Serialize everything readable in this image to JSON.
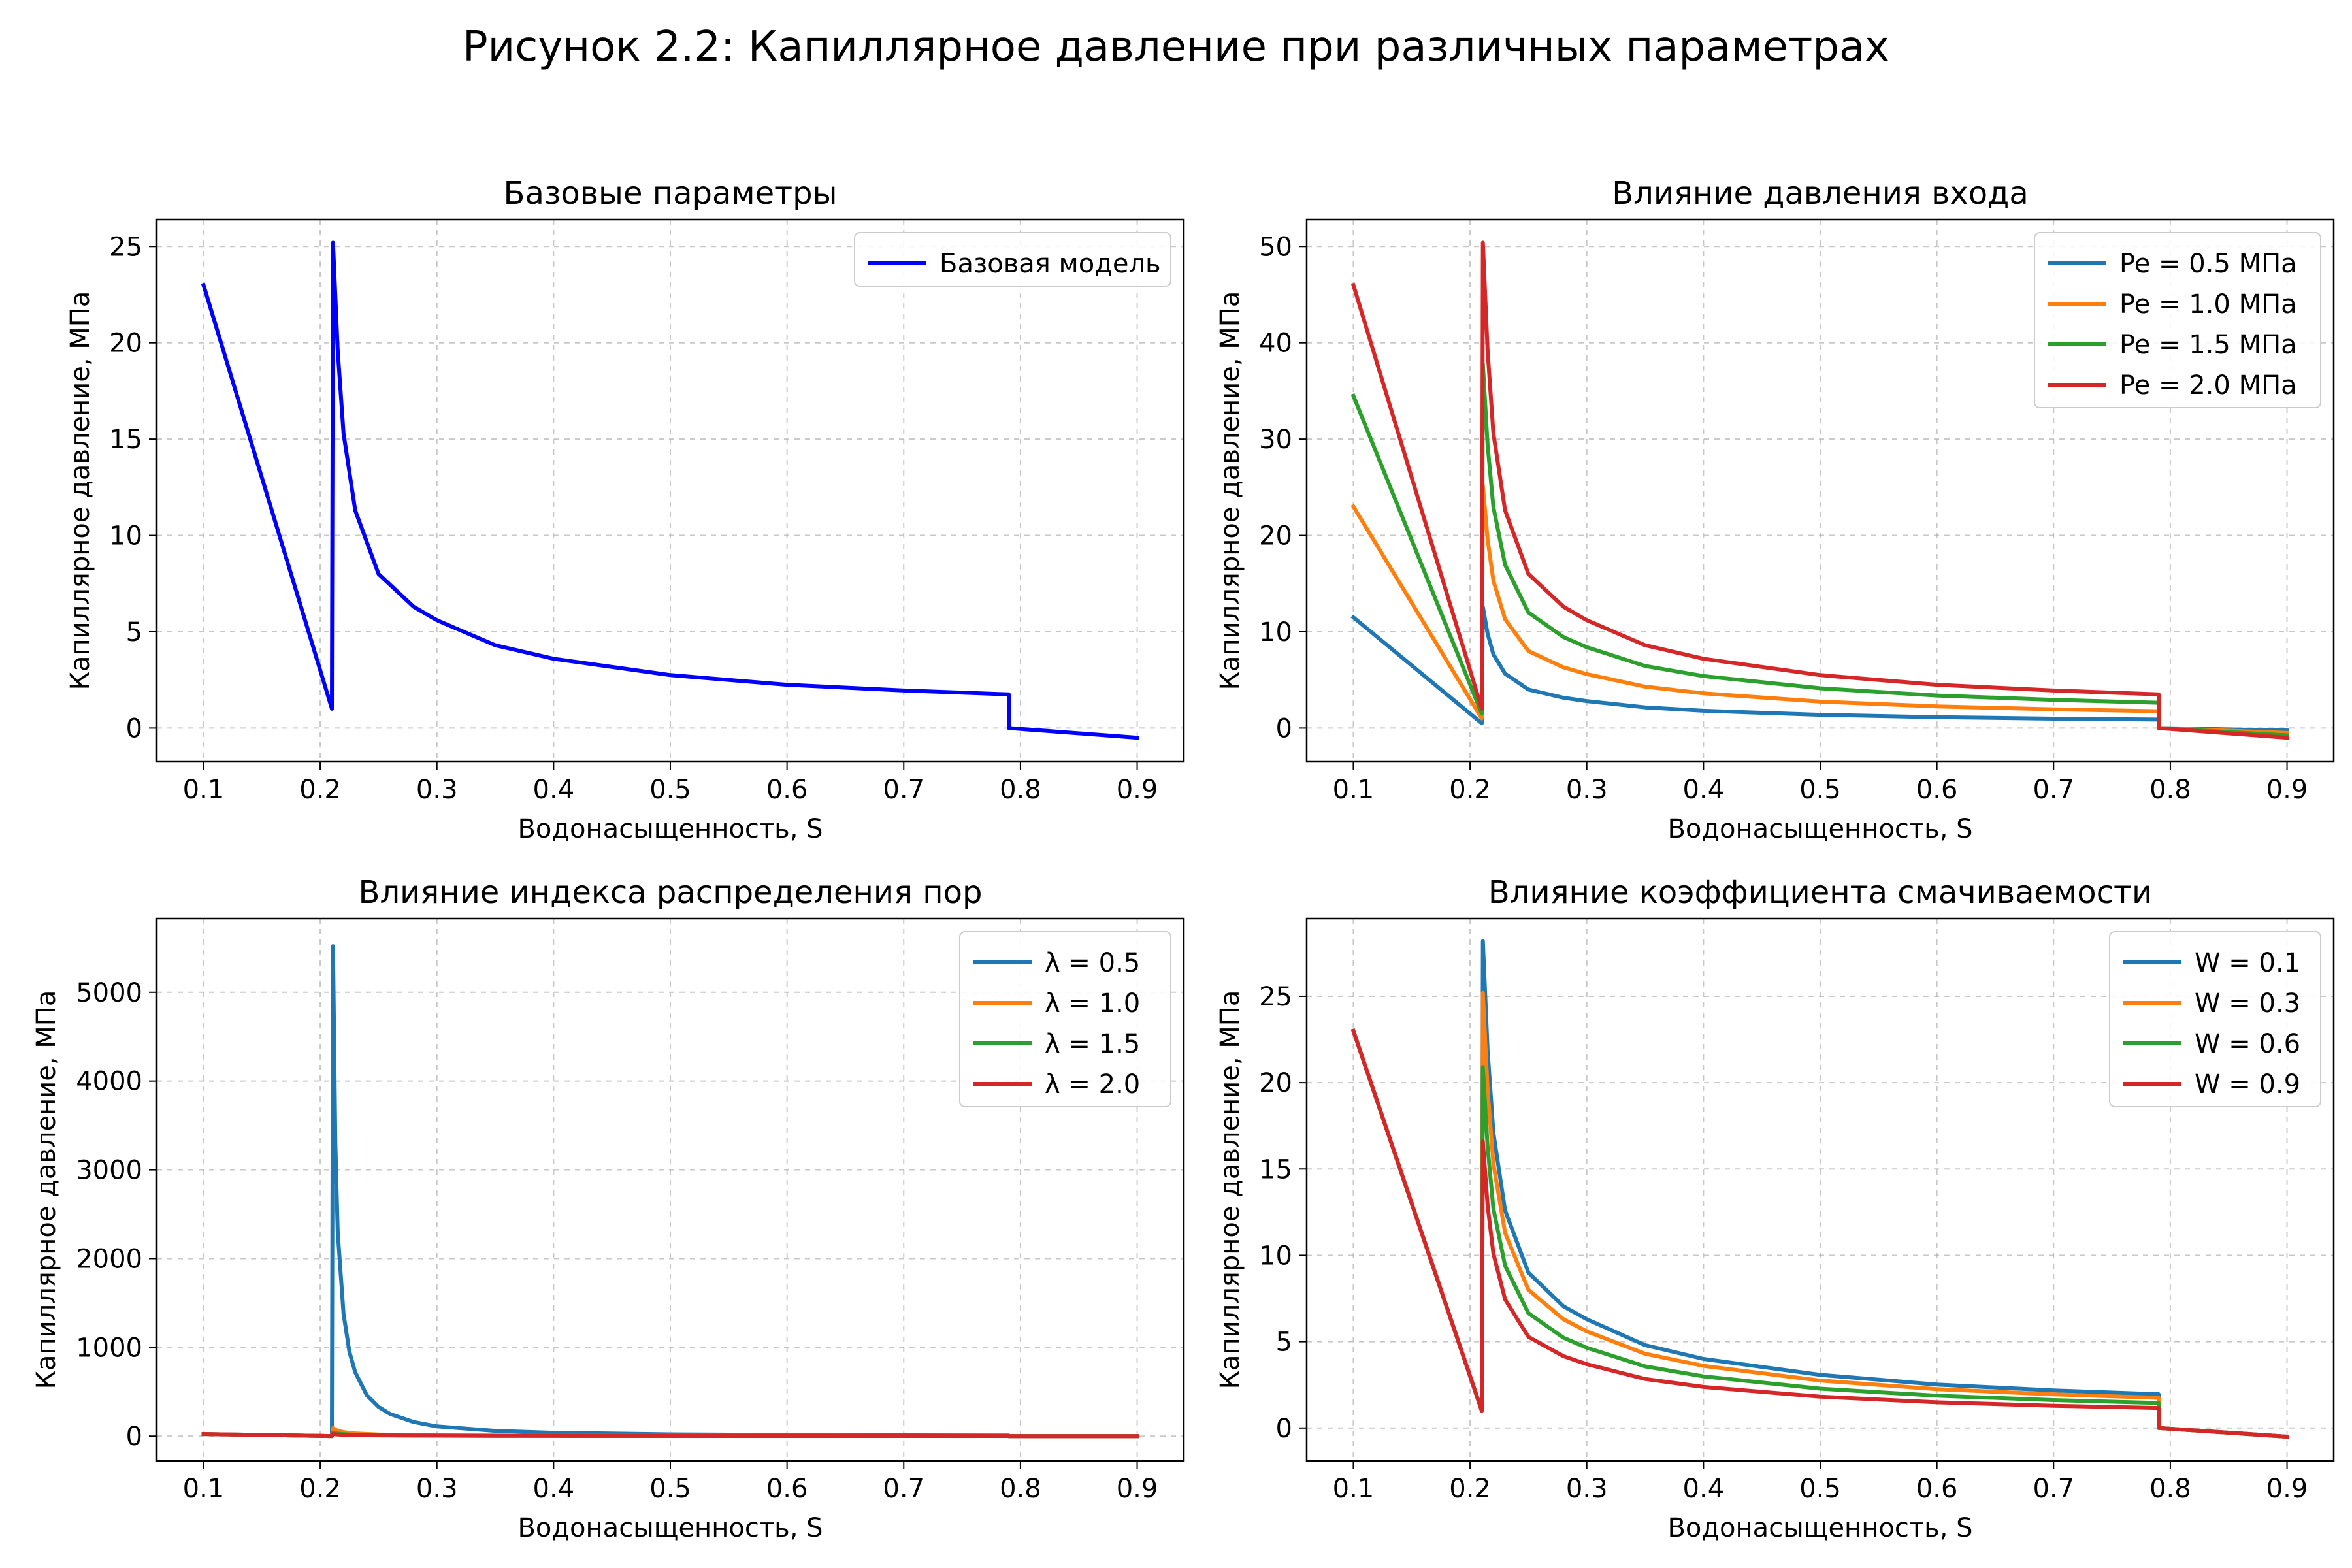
{
  "figure_title": "Рисунок 2.2: Капиллярное давление при различных параметрах",
  "colors": {
    "tab_blue": "#1f77b4",
    "tab_orange": "#ff7f0e",
    "tab_green": "#2ca02c",
    "tab_red": "#d62728",
    "pure_blue": "#0000ff",
    "grid": "#b0b0b0"
  },
  "chart_data": [
    {
      "type": "line",
      "title": "Базовые параметры",
      "xlabel": "Водонасыщенность, S",
      "ylabel": "Капиллярное давление, МПа",
      "xlim": [
        0.06,
        0.94
      ],
      "ylim": [
        -1.75,
        26.4
      ],
      "xticks": [
        0.1,
        0.2,
        0.3,
        0.4,
        0.5,
        0.6,
        0.7,
        0.8,
        0.9
      ],
      "xtick_labels": [
        "0.1",
        "0.2",
        "0.3",
        "0.4",
        "0.5",
        "0.6",
        "0.7",
        "0.8",
        "0.9"
      ],
      "yticks": [
        0,
        5,
        10,
        15,
        20,
        25
      ],
      "ytick_labels": [
        "0",
        "5",
        "10",
        "15",
        "20",
        "25"
      ],
      "grid": true,
      "legend_position": "top-right",
      "series": [
        {
          "name": "Базовая модель",
          "color": "#0000ff",
          "x": [
            0.1,
            0.21,
            0.211,
            0.215,
            0.22,
            0.23,
            0.25,
            0.28,
            0.3,
            0.35,
            0.4,
            0.5,
            0.6,
            0.7,
            0.79,
            0.7901,
            0.9
          ],
          "y": [
            23.0,
            1.0,
            25.2,
            19.6,
            15.3,
            11.3,
            8.0,
            6.3,
            5.6,
            4.3,
            3.6,
            2.75,
            2.25,
            1.95,
            1.75,
            0.0,
            -0.5
          ]
        }
      ]
    },
    {
      "type": "line",
      "title": "Влияние давления входа",
      "xlabel": "Водонасыщенность, S",
      "ylabel": "Капиллярное давление, МПа",
      "xlim": [
        0.06,
        0.94
      ],
      "ylim": [
        -3.5,
        52.8
      ],
      "xticks": [
        0.1,
        0.2,
        0.3,
        0.4,
        0.5,
        0.6,
        0.7,
        0.8,
        0.9
      ],
      "xtick_labels": [
        "0.1",
        "0.2",
        "0.3",
        "0.4",
        "0.5",
        "0.6",
        "0.7",
        "0.8",
        "0.9"
      ],
      "yticks": [
        0,
        10,
        20,
        30,
        40,
        50
      ],
      "ytick_labels": [
        "0",
        "10",
        "20",
        "30",
        "40",
        "50"
      ],
      "grid": true,
      "legend_position": "top-right",
      "series": [
        {
          "name": "Pe = 0.5 МПа",
          "color": "#1f77b4",
          "x": [
            0.1,
            0.21,
            0.211,
            0.215,
            0.22,
            0.23,
            0.25,
            0.28,
            0.3,
            0.35,
            0.4,
            0.5,
            0.6,
            0.7,
            0.79,
            0.7901,
            0.9
          ],
          "y": [
            11.5,
            0.5,
            12.6,
            9.8,
            7.65,
            5.65,
            4.0,
            3.15,
            2.8,
            2.15,
            1.8,
            1.38,
            1.13,
            0.98,
            0.88,
            0.0,
            -0.25
          ]
        },
        {
          "name": "Pe = 1.0 МПа",
          "color": "#ff7f0e",
          "x": [
            0.1,
            0.21,
            0.211,
            0.215,
            0.22,
            0.23,
            0.25,
            0.28,
            0.3,
            0.35,
            0.4,
            0.5,
            0.6,
            0.7,
            0.79,
            0.7901,
            0.9
          ],
          "y": [
            23.0,
            1.0,
            25.2,
            19.6,
            15.3,
            11.3,
            8.0,
            6.3,
            5.6,
            4.3,
            3.6,
            2.75,
            2.25,
            1.95,
            1.75,
            0.0,
            -0.5
          ]
        },
        {
          "name": "Pe = 1.5 МПа",
          "color": "#2ca02c",
          "x": [
            0.1,
            0.21,
            0.211,
            0.215,
            0.22,
            0.23,
            0.25,
            0.28,
            0.3,
            0.35,
            0.4,
            0.5,
            0.6,
            0.7,
            0.79,
            0.7901,
            0.9
          ],
          "y": [
            34.5,
            1.5,
            37.8,
            29.4,
            22.95,
            16.95,
            12.0,
            9.45,
            8.4,
            6.45,
            5.4,
            4.13,
            3.38,
            2.93,
            2.63,
            0.0,
            -0.75
          ]
        },
        {
          "name": "Pe = 2.0 МПа",
          "color": "#d62728",
          "x": [
            0.1,
            0.21,
            0.211,
            0.215,
            0.22,
            0.23,
            0.25,
            0.28,
            0.3,
            0.35,
            0.4,
            0.5,
            0.6,
            0.7,
            0.79,
            0.7901,
            0.9
          ],
          "y": [
            46.0,
            2.0,
            50.4,
            39.2,
            30.6,
            22.6,
            16.0,
            12.6,
            11.2,
            8.6,
            7.2,
            5.5,
            4.5,
            3.9,
            3.5,
            0.0,
            -1.0
          ]
        }
      ]
    },
    {
      "type": "line",
      "title": "Влияние индекса распределения пор",
      "xlabel": "Водонасыщенность, S",
      "ylabel": "Капиллярное давление, МПа",
      "xlim": [
        0.06,
        0.94
      ],
      "ylim": [
        -278,
        5830
      ],
      "xticks": [
        0.1,
        0.2,
        0.3,
        0.4,
        0.5,
        0.6,
        0.7,
        0.8,
        0.9
      ],
      "xtick_labels": [
        "0.1",
        "0.2",
        "0.3",
        "0.4",
        "0.5",
        "0.6",
        "0.7",
        "0.8",
        "0.9"
      ],
      "yticks": [
        0,
        1000,
        2000,
        3000,
        4000,
        5000
      ],
      "ytick_labels": [
        "0",
        "1000",
        "2000",
        "3000",
        "4000",
        "5000"
      ],
      "grid": true,
      "legend_position": "top-right",
      "series": [
        {
          "name": "λ = 0.5",
          "color": "#1f77b4",
          "x": [
            0.1,
            0.21,
            0.211,
            0.213,
            0.215,
            0.22,
            0.225,
            0.23,
            0.24,
            0.25,
            0.26,
            0.28,
            0.3,
            0.35,
            0.4,
            0.5,
            0.6,
            0.7,
            0.79,
            0.7901,
            0.9
          ],
          "y": [
            23,
            1,
            5520,
            3300,
            2300,
            1380,
            950,
            720,
            460,
            330,
            250,
            160,
            110,
            60,
            38,
            20,
            13,
            9,
            7,
            0,
            -0.5
          ]
        },
        {
          "name": "λ = 1.0",
          "color": "#ff7f0e",
          "x": [
            0.1,
            0.21,
            0.211,
            0.215,
            0.22,
            0.23,
            0.25,
            0.28,
            0.3,
            0.35,
            0.4,
            0.5,
            0.6,
            0.7,
            0.79,
            0.7901,
            0.9
          ],
          "y": [
            23,
            1,
            90,
            60,
            45,
            30,
            18,
            11,
            9,
            6,
            4.5,
            3,
            2.3,
            1.9,
            1.7,
            0,
            -0.5
          ]
        },
        {
          "name": "λ = 1.5",
          "color": "#2ca02c",
          "x": [
            0.1,
            0.21,
            0.211,
            0.215,
            0.22,
            0.23,
            0.25,
            0.28,
            0.3,
            0.35,
            0.4,
            0.5,
            0.6,
            0.7,
            0.79,
            0.7901,
            0.9
          ],
          "y": [
            23,
            1,
            40,
            28,
            22,
            15,
            10,
            7,
            6,
            4.2,
            3.3,
            2.4,
            1.9,
            1.6,
            1.4,
            0,
            -0.5
          ]
        },
        {
          "name": "λ = 2.0",
          "color": "#d62728",
          "x": [
            0.1,
            0.21,
            0.211,
            0.215,
            0.22,
            0.23,
            0.25,
            0.28,
            0.3,
            0.35,
            0.4,
            0.5,
            0.6,
            0.7,
            0.79,
            0.7901,
            0.9
          ],
          "y": [
            23,
            1,
            25,
            19,
            15,
            11,
            8,
            6,
            5.5,
            4,
            3.3,
            2.5,
            2,
            1.7,
            1.5,
            0,
            -0.5
          ]
        }
      ]
    },
    {
      "type": "line",
      "title": "Влияние коэффициента смачиваемости",
      "xlabel": "Водонасыщенность, S",
      "ylabel": "Капиллярное давление, МПа",
      "xlim": [
        0.06,
        0.94
      ],
      "ylim": [
        -1.9,
        29.5
      ],
      "xticks": [
        0.1,
        0.2,
        0.3,
        0.4,
        0.5,
        0.6,
        0.7,
        0.8,
        0.9
      ],
      "xtick_labels": [
        "0.1",
        "0.2",
        "0.3",
        "0.4",
        "0.5",
        "0.6",
        "0.7",
        "0.8",
        "0.9"
      ],
      "yticks": [
        0,
        5,
        10,
        15,
        20,
        25
      ],
      "ytick_labels": [
        "0",
        "5",
        "10",
        "15",
        "20",
        "25"
      ],
      "grid": true,
      "legend_position": "top-right",
      "series": [
        {
          "name": "W = 0.1",
          "color": "#1f77b4",
          "x": [
            0.1,
            0.21,
            0.211,
            0.215,
            0.22,
            0.23,
            0.25,
            0.28,
            0.3,
            0.35,
            0.4,
            0.5,
            0.6,
            0.7,
            0.79,
            0.7901,
            0.9
          ],
          "y": [
            23.0,
            1.0,
            28.2,
            21.9,
            17.1,
            12.6,
            9.0,
            7.05,
            6.3,
            4.8,
            4.0,
            3.08,
            2.52,
            2.18,
            1.96,
            0.0,
            -0.5
          ]
        },
        {
          "name": "W = 0.3",
          "color": "#ff7f0e",
          "x": [
            0.1,
            0.21,
            0.211,
            0.215,
            0.22,
            0.23,
            0.25,
            0.28,
            0.3,
            0.35,
            0.4,
            0.5,
            0.6,
            0.7,
            0.79,
            0.7901,
            0.9
          ],
          "y": [
            23.0,
            1.0,
            25.2,
            19.6,
            15.3,
            11.3,
            8.0,
            6.3,
            5.6,
            4.3,
            3.6,
            2.75,
            2.25,
            1.95,
            1.75,
            0.0,
            -0.5
          ]
        },
        {
          "name": "W = 0.6",
          "color": "#2ca02c",
          "x": [
            0.1,
            0.21,
            0.211,
            0.215,
            0.22,
            0.23,
            0.25,
            0.28,
            0.3,
            0.35,
            0.4,
            0.5,
            0.6,
            0.7,
            0.79,
            0.7901,
            0.9
          ],
          "y": [
            23.0,
            1.0,
            20.9,
            16.3,
            12.7,
            9.4,
            6.65,
            5.23,
            4.65,
            3.57,
            2.99,
            2.28,
            1.87,
            1.62,
            1.45,
            0.0,
            -0.5
          ]
        },
        {
          "name": "W = 0.9",
          "color": "#d62728",
          "x": [
            0.1,
            0.21,
            0.211,
            0.215,
            0.22,
            0.23,
            0.25,
            0.28,
            0.3,
            0.35,
            0.4,
            0.5,
            0.6,
            0.7,
            0.79,
            0.7901,
            0.9
          ],
          "y": [
            23.0,
            1.0,
            16.6,
            12.9,
            10.1,
            7.45,
            5.28,
            4.16,
            3.7,
            2.84,
            2.38,
            1.82,
            1.49,
            1.29,
            1.16,
            0.0,
            -0.5
          ]
        }
      ]
    }
  ]
}
